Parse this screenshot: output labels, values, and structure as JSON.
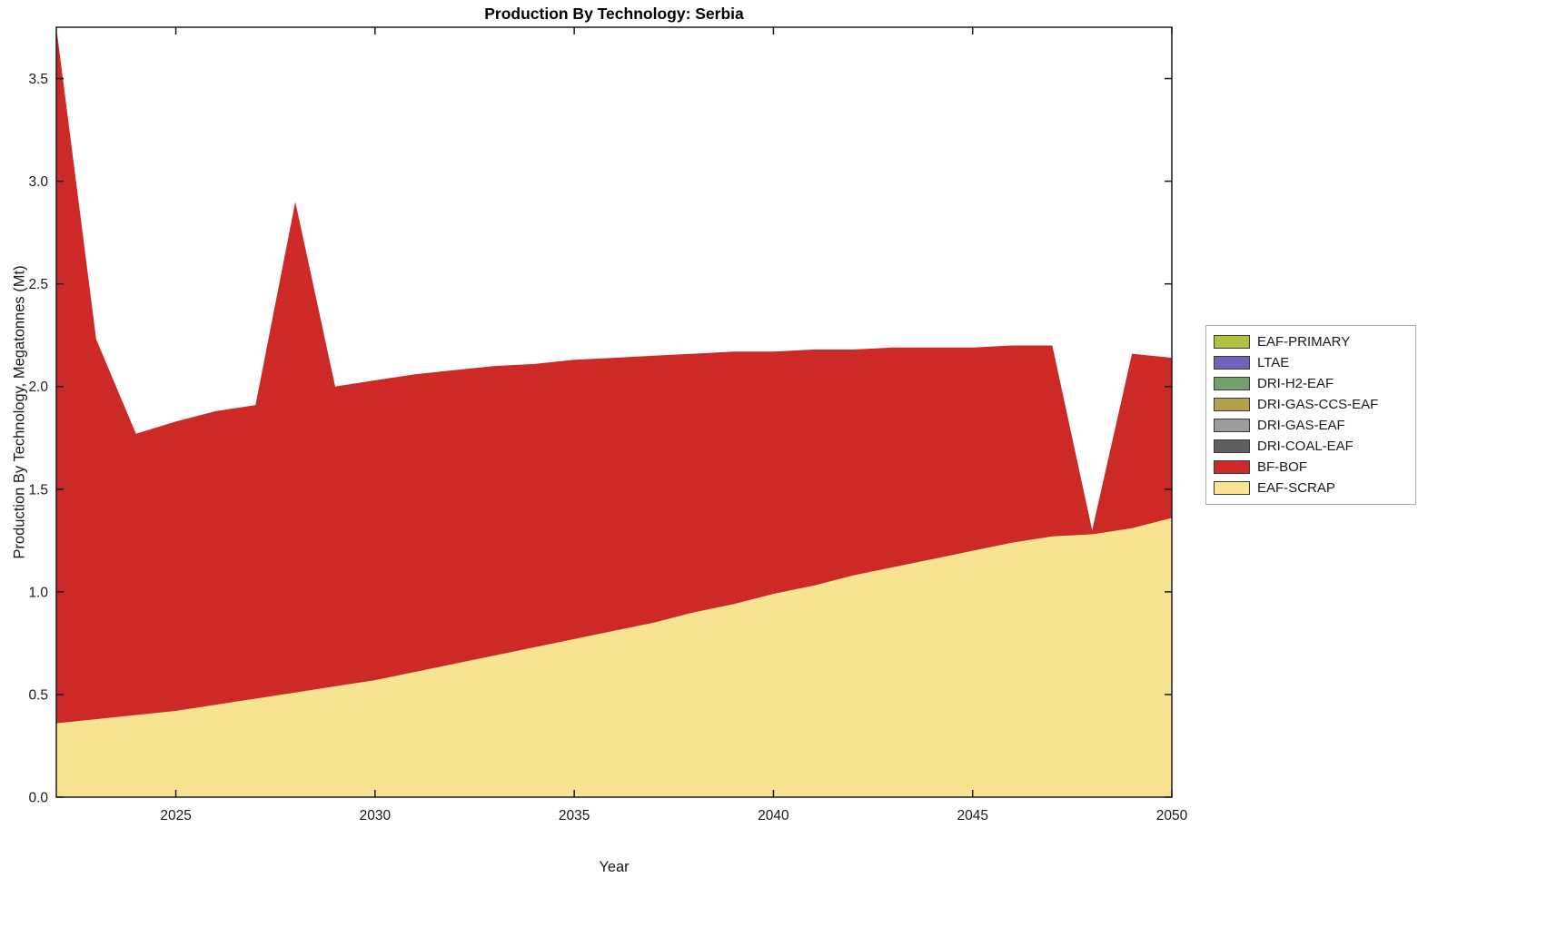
{
  "chart_data": {
    "type": "area",
    "stacked": true,
    "title": "Production By Technology: Serbia",
    "xlabel": "Year",
    "ylabel": "Production By Technology, Megatonnes (Mt)",
    "grid": false,
    "legend_position": "right-outside",
    "axis_color": "#1a1a1a",
    "plot_bg": "#ffffff",
    "xlim": [
      2022,
      2050
    ],
    "ylim": [
      0,
      3.75
    ],
    "xticks": [
      2025,
      2030,
      2035,
      2040,
      2045,
      2050
    ],
    "xtick_labels": [
      "2025",
      "2030",
      "2035",
      "2040",
      "2045",
      "2050"
    ],
    "yticks": [
      0,
      0.5,
      1.0,
      1.5,
      2.0,
      2.5,
      3.0,
      3.5
    ],
    "ytick_labels": [
      "0.0",
      "0.5",
      "1.0",
      "1.5",
      "2.0",
      "2.5",
      "3.0",
      "3.5"
    ],
    "x": [
      2022,
      2023,
      2024,
      2025,
      2026,
      2027,
      2028,
      2029,
      2030,
      2031,
      2032,
      2033,
      2034,
      2035,
      2036,
      2037,
      2038,
      2039,
      2040,
      2041,
      2042,
      2043,
      2044,
      2045,
      2046,
      2047,
      2048,
      2049,
      2050
    ],
    "series": [
      {
        "name": "EAF-SCRAP",
        "color": "#f8e392",
        "values": [
          0.36,
          0.38,
          0.4,
          0.42,
          0.45,
          0.48,
          0.51,
          0.54,
          0.57,
          0.61,
          0.65,
          0.69,
          0.73,
          0.77,
          0.81,
          0.85,
          0.9,
          0.94,
          0.99,
          1.03,
          1.08,
          1.12,
          1.16,
          1.2,
          1.24,
          1.27,
          1.28,
          1.31,
          1.36
        ]
      },
      {
        "name": "BF-BOF",
        "color": "#cd2a27",
        "values": [
          3.39,
          1.85,
          1.37,
          1.41,
          1.43,
          1.43,
          2.39,
          1.46,
          1.46,
          1.45,
          1.43,
          1.41,
          1.38,
          1.36,
          1.33,
          1.3,
          1.26,
          1.23,
          1.18,
          1.15,
          1.1,
          1.07,
          1.03,
          0.99,
          0.96,
          0.93,
          0.02,
          0.85,
          0.78
        ]
      },
      {
        "name": "DRI-COAL-EAF",
        "color": "#5f5f5f",
        "values": 0
      },
      {
        "name": "DRI-GAS-EAF",
        "color": "#9c9c9c",
        "values": 0
      },
      {
        "name": "DRI-GAS-CCS-EAF",
        "color": "#b1a14c",
        "values": 0
      },
      {
        "name": "DRI-H2-EAF",
        "color": "#74a06f",
        "values": 0
      },
      {
        "name": "LTAE",
        "color": "#6f63bb",
        "values": 0
      },
      {
        "name": "EAF-PRIMARY",
        "color": "#b3c140",
        "values": 0
      }
    ]
  }
}
